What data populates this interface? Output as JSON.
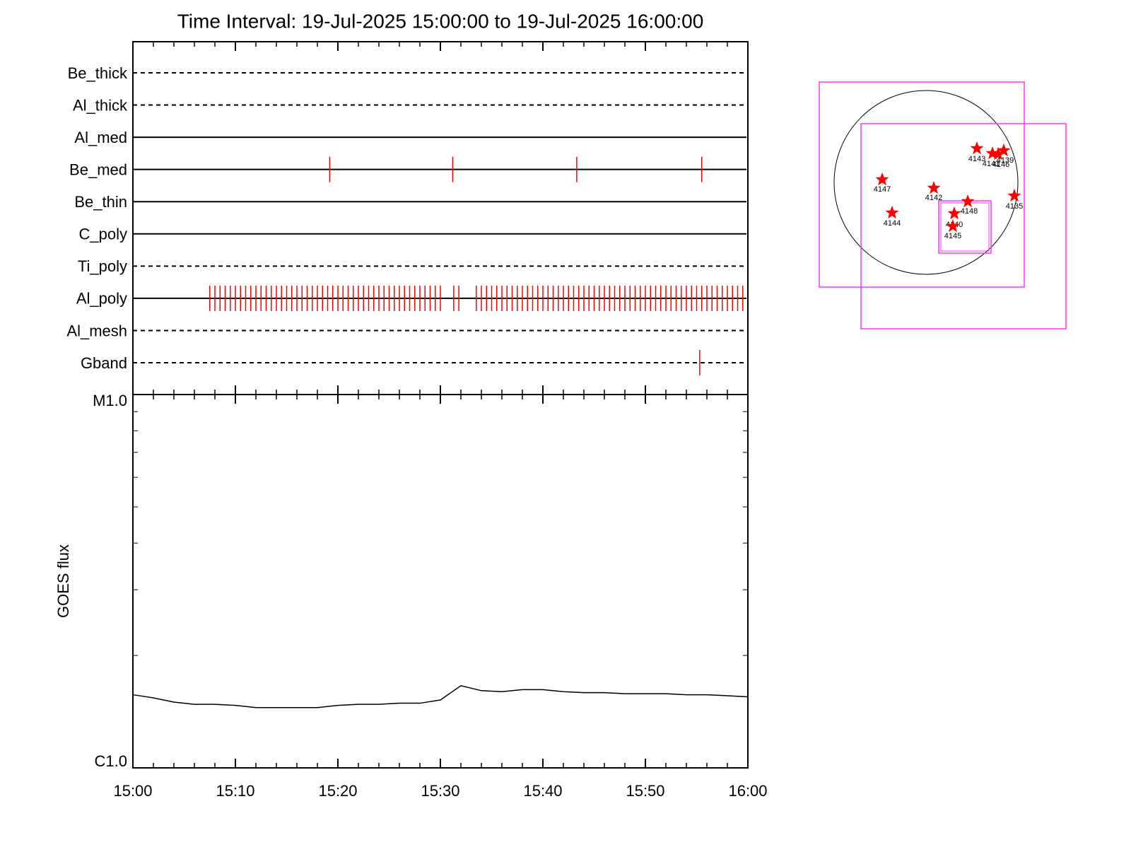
{
  "chart_data": [
    {
      "type": "timeline",
      "title": "Time Interval: 19-Jul-2025 15:00:00 to 19-Jul-2025 16:00:00",
      "xlim": [
        0,
        60
      ],
      "xticks": [
        0,
        10,
        20,
        30,
        40,
        50,
        60
      ],
      "color": "#ff0000",
      "rows": [
        {
          "name": "Be_thick",
          "style": "dashed",
          "times": []
        },
        {
          "name": "Al_thick",
          "style": "dashed",
          "times": []
        },
        {
          "name": "Al_med",
          "style": "solid",
          "times": []
        },
        {
          "name": "Be_med",
          "style": "solid",
          "times": [
            19.2,
            31.2,
            43.3,
            55.5
          ]
        },
        {
          "name": "Be_thin",
          "style": "solid",
          "times": []
        },
        {
          "name": "C_poly",
          "style": "solid",
          "times": []
        },
        {
          "name": "Ti_poly",
          "style": "dashed",
          "times": []
        },
        {
          "name": "Al_poly",
          "style": "solid",
          "times": [
            7.5,
            8,
            8.5,
            9,
            9.5,
            10,
            10.5,
            11,
            11.5,
            12,
            12.5,
            13,
            13.5,
            14,
            14.5,
            15,
            15.5,
            16,
            16.5,
            17,
            17.5,
            18,
            18.5,
            19,
            19.5,
            20,
            20.5,
            21,
            21.5,
            22,
            22.5,
            23,
            23.5,
            24,
            24.5,
            25,
            25.5,
            26,
            26.5,
            27,
            27.5,
            28,
            28.5,
            29,
            29.5,
            30,
            31.3,
            31.8,
            33.5,
            34,
            34.5,
            35,
            35.5,
            36,
            36.5,
            37,
            37.5,
            38,
            38.5,
            39,
            39.5,
            40,
            40.5,
            41,
            41.5,
            42,
            42.5,
            43,
            43.5,
            44,
            44.5,
            45,
            45.5,
            46,
            46.5,
            47,
            47.5,
            48,
            48.5,
            49,
            49.5,
            50,
            50.5,
            51,
            51.5,
            52,
            52.5,
            53,
            53.5,
            54,
            54.5,
            55,
            55.5,
            56,
            56.5,
            57,
            57.5,
            58,
            58.5,
            59,
            59.5
          ]
        },
        {
          "name": "Al_mesh",
          "style": "dashed",
          "times": []
        },
        {
          "name": "Gband",
          "style": "dashed",
          "times": [
            55.3
          ]
        }
      ]
    },
    {
      "type": "line",
      "y_label": "GOES flux",
      "x": [
        0,
        2,
        4,
        6,
        8,
        10,
        12,
        14,
        16,
        18,
        20,
        22,
        24,
        26,
        28,
        30,
        32,
        34,
        36,
        38,
        40,
        42,
        44,
        46,
        48,
        50,
        52,
        54,
        56,
        58,
        60
      ],
      "values": [
        1.57e-06,
        1.54e-06,
        1.5e-06,
        1.48e-06,
        1.48e-06,
        1.47e-06,
        1.45e-06,
        1.45e-06,
        1.45e-06,
        1.45e-06,
        1.47e-06,
        1.48e-06,
        1.48e-06,
        1.49e-06,
        1.49e-06,
        1.52e-06,
        1.66e-06,
        1.61e-06,
        1.6e-06,
        1.62e-06,
        1.62e-06,
        1.6e-06,
        1.59e-06,
        1.59e-06,
        1.58e-06,
        1.58e-06,
        1.58e-06,
        1.57e-06,
        1.57e-06,
        1.56e-06,
        1.55e-06
      ],
      "color": "#000000",
      "xlim": [
        0,
        60
      ],
      "xticks": [
        {
          "value": 0,
          "label": "15:00"
        },
        {
          "value": 10,
          "label": "15:10"
        },
        {
          "value": 20,
          "label": "15:20"
        },
        {
          "value": 30,
          "label": "15:30"
        },
        {
          "value": 40,
          "label": "15:40"
        },
        {
          "value": 50,
          "label": "15:50"
        },
        {
          "value": 60,
          "label": "16:00"
        }
      ],
      "ylim": [
        1e-06,
        1e-05
      ],
      "yticks": [
        {
          "value": 1e-06,
          "label": "C1.0"
        },
        {
          "value": 1e-05,
          "label": "M1.0"
        }
      ],
      "log_y": true
    }
  ],
  "sun_map": {
    "regions": [
      "4147",
      "4142",
      "4143",
      "4141",
      "4146",
      "4139",
      "4148",
      "4140",
      "4145",
      "4144",
      "4135"
    ]
  }
}
